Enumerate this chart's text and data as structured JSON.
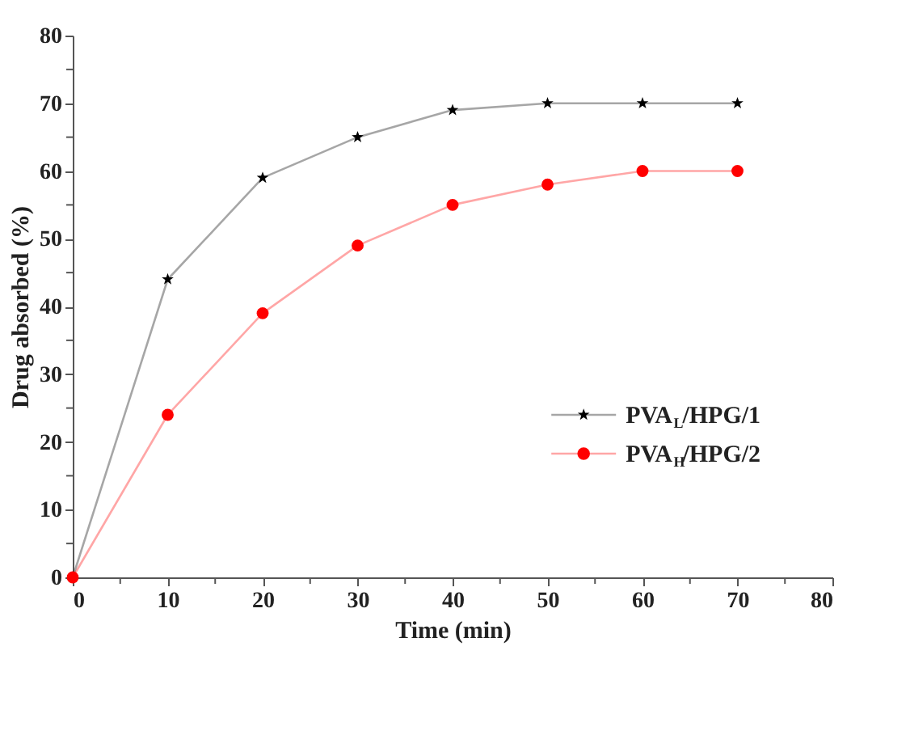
{
  "chart_data": {
    "type": "line",
    "xlabel": "Time (min)",
    "ylabel": "Drug absorbed (%)",
    "x": [
      0,
      10,
      20,
      30,
      40,
      50,
      60,
      70
    ],
    "series": [
      {
        "name": "PVA$_{L}$/HPG/1",
        "color": "#000000",
        "marker": "star",
        "values": [
          0,
          44,
          59,
          65,
          69,
          70,
          70,
          70
        ]
      },
      {
        "name": "PVA$_{H}$/HPG/2",
        "color": "#ff0000",
        "marker": "circle",
        "values": [
          0,
          24,
          39,
          49,
          55,
          58,
          60,
          60
        ]
      }
    ],
    "xlim": [
      0,
      80
    ],
    "ylim": [
      0,
      80
    ],
    "xticks": [
      0,
      {
        "value": 5,
        "label": null
      },
      10,
      {
        "value": 15,
        "label": null
      },
      20,
      {
        "value": 25,
        "label": null
      },
      30,
      {
        "value": 35,
        "label": null
      },
      40,
      {
        "value": 45,
        "label": null
      },
      50,
      {
        "value": 55,
        "label": null
      },
      60,
      {
        "value": 65,
        "label": null
      },
      70,
      {
        "value": 75,
        "label": null
      },
      80
    ],
    "yticks": [
      0,
      {
        "value": 5,
        "label": null
      },
      10,
      {
        "value": 15,
        "label": null
      },
      20,
      {
        "value": 25,
        "label": null
      },
      30,
      {
        "value": 35,
        "label": null
      },
      40,
      {
        "value": 45,
        "label": null
      },
      50,
      {
        "value": 55,
        "label": null
      },
      60,
      {
        "value": 65,
        "label": null
      },
      70,
      {
        "value": 75,
        "label": null
      },
      80
    ],
    "legend": "right",
    "grid": false
  }
}
